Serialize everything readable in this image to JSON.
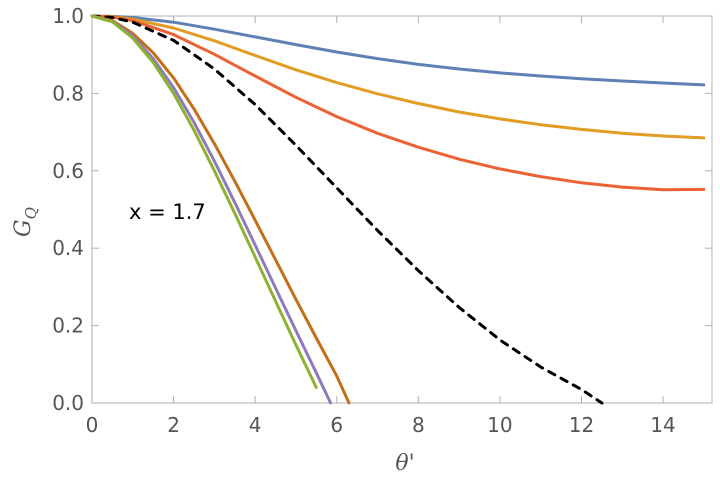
{
  "chart_data": {
    "type": "line",
    "xlabel": "θ'",
    "ylabel_main": "G",
    "ylabel_sub": "Q",
    "xlim": [
      0,
      15.2
    ],
    "ylim": [
      0,
      1.0
    ],
    "xticks": [
      0,
      2,
      4,
      6,
      8,
      10,
      12,
      14
    ],
    "yticks": [
      0.0,
      0.2,
      0.4,
      0.6,
      0.8,
      1.0
    ],
    "xtick_labels": [
      "0",
      "2",
      "4",
      "6",
      "8",
      "10",
      "12",
      "14"
    ],
    "ytick_labels": [
      "0.0",
      "0.2",
      "0.4",
      "0.6",
      "0.8",
      "1.0"
    ],
    "annotation": "x = 1.7",
    "grid": false,
    "series": [
      {
        "color": "#5E81B5",
        "style": "solid",
        "x": [
          0,
          0.5,
          1,
          2,
          3,
          4,
          5,
          6,
          7,
          8,
          9,
          10,
          11,
          12,
          13,
          14,
          15
        ],
        "y": [
          1.0,
          0.999,
          0.996,
          0.984,
          0.966,
          0.946,
          0.926,
          0.907,
          0.89,
          0.875,
          0.863,
          0.853,
          0.845,
          0.838,
          0.832,
          0.827,
          0.822
        ]
      },
      {
        "color": "#E19C24",
        "style": "solid",
        "x": [
          0,
          0.5,
          1,
          2,
          3,
          4,
          5,
          6,
          7,
          8,
          9,
          10,
          11,
          12,
          13,
          14,
          15
        ],
        "y": [
          1.0,
          0.998,
          0.992,
          0.969,
          0.936,
          0.898,
          0.861,
          0.828,
          0.799,
          0.774,
          0.752,
          0.734,
          0.719,
          0.707,
          0.697,
          0.69,
          0.685
        ]
      },
      {
        "color": "#EC6235",
        "style": "solid",
        "x": [
          0,
          0.5,
          1,
          2,
          3,
          4,
          5,
          6,
          7,
          8,
          9,
          10,
          11,
          12,
          13,
          14,
          15
        ],
        "y": [
          1.0,
          0.997,
          0.988,
          0.952,
          0.901,
          0.845,
          0.79,
          0.74,
          0.697,
          0.661,
          0.63,
          0.605,
          0.585,
          0.569,
          0.558,
          0.551,
          0.552
        ]
      },
      {
        "color": "#000000",
        "style": "dashed",
        "x": [
          0,
          0.5,
          1,
          2,
          3,
          4,
          5,
          6,
          7,
          8,
          9,
          10,
          11,
          12,
          12.5
        ],
        "y": [
          1.0,
          0.996,
          0.984,
          0.937,
          0.863,
          0.771,
          0.666,
          0.556,
          0.446,
          0.342,
          0.247,
          0.163,
          0.093,
          0.035,
          0.0
        ]
      },
      {
        "color": "#C56E1A",
        "style": "solid",
        "x": [
          0,
          0.5,
          1,
          1.5,
          2,
          2.5,
          3,
          3.5,
          4,
          4.5,
          5,
          5.5,
          6,
          6.3
        ],
        "y": [
          1.0,
          0.988,
          0.955,
          0.905,
          0.84,
          0.76,
          0.67,
          0.573,
          0.472,
          0.37,
          0.268,
          0.168,
          0.07,
          0.0
        ]
      },
      {
        "color": "#8F7BBA",
        "style": "solid",
        "x": [
          0,
          0.5,
          1,
          1.5,
          2,
          2.5,
          3,
          3.5,
          4,
          4.5,
          5,
          5.5,
          5.85
        ],
        "y": [
          1.0,
          0.986,
          0.948,
          0.89,
          0.815,
          0.725,
          0.625,
          0.518,
          0.408,
          0.297,
          0.187,
          0.078,
          0.0
        ]
      },
      {
        "color": "#8DB131",
        "style": "solid",
        "x": [
          0,
          0.5,
          1,
          1.5,
          2,
          2.5,
          3,
          3.5,
          4,
          4.5,
          5,
          5.5
        ],
        "y": [
          1.0,
          0.985,
          0.943,
          0.88,
          0.8,
          0.705,
          0.6,
          0.49,
          0.377,
          0.263,
          0.15,
          0.04
        ]
      }
    ]
  }
}
